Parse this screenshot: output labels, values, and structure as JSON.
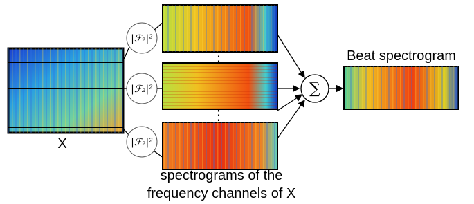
{
  "input": {
    "label": "X"
  },
  "operators": [
    {
      "label": "|ℱ₂|²"
    },
    {
      "label": "|ℱ₂|²"
    },
    {
      "label": "|ℱ₂|²"
    }
  ],
  "ellipses": [
    "⋮",
    "⋮"
  ],
  "sum": {
    "label": "∑"
  },
  "output": {
    "title": "Beat spectrogram"
  },
  "caption": {
    "lines": [
      "spectrograms of the",
      "frequency channels of X"
    ]
  }
}
